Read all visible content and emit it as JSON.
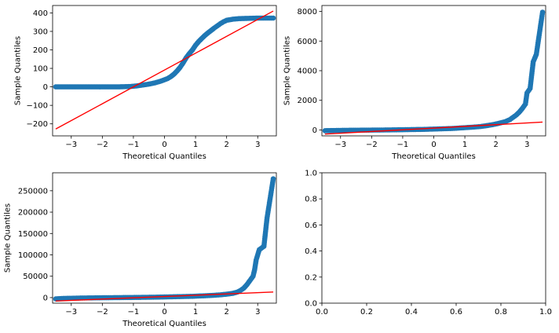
{
  "colors": {
    "points": "#1f77b4",
    "reference_line": "#ff0000",
    "frame": "#000000"
  },
  "chart_data": [
    {
      "type": "scatter",
      "title": "",
      "xlabel": "Theoretical Quantiles",
      "ylabel": "Sample Quantiles",
      "xlim": [
        -3.6,
        3.6
      ],
      "ylim": [
        -265,
        440
      ],
      "xticks": [
        -3,
        -2,
        -1,
        0,
        1,
        2,
        3
      ],
      "yticks": [
        -200,
        -100,
        0,
        100,
        200,
        300,
        400
      ],
      "reference_line": [
        [
          -3.5,
          -228
        ],
        [
          3.5,
          410
        ]
      ],
      "series": [
        {
          "x": [
            -3.5,
            -3.3,
            -3.1,
            -2.9,
            -2.7,
            -2.5,
            -2.3,
            -2.1,
            -1.9,
            -1.7,
            -1.5,
            -1.3,
            -1.1,
            -0.9,
            -0.7,
            -0.5,
            -0.3,
            -0.1,
            0.1,
            0.2,
            0.3,
            0.4,
            0.5,
            0.6,
            0.7,
            0.8,
            0.9,
            1.0,
            1.1,
            1.2,
            1.3,
            1.4,
            1.5,
            1.6,
            1.7,
            1.8,
            1.9,
            2.0,
            2.2,
            2.4,
            2.6,
            2.8,
            3.0,
            3.2,
            3.5
          ],
          "y": [
            0,
            0,
            0,
            0,
            0,
            0,
            0,
            0,
            0,
            0,
            0,
            1,
            2,
            5,
            10,
            15,
            22,
            32,
            45,
            55,
            68,
            85,
            105,
            130,
            158,
            180,
            200,
            225,
            245,
            262,
            278,
            292,
            305,
            318,
            330,
            342,
            352,
            360,
            366,
            369,
            370,
            371,
            372,
            372,
            372
          ]
        }
      ]
    },
    {
      "type": "scatter",
      "title": "",
      "xlabel": "Theoretical Quantiles",
      "ylabel": "Sample Quantiles",
      "xlim": [
        -3.6,
        3.6
      ],
      "ylim": [
        -400,
        8400
      ],
      "xticks": [
        -3,
        -2,
        -1,
        0,
        1,
        2,
        3
      ],
      "yticks": [
        0,
        2000,
        4000,
        6000,
        8000
      ],
      "reference_line": [
        [
          -3.5,
          -280
        ],
        [
          3.5,
          530
        ]
      ],
      "series": [
        {
          "x": [
            -3.5,
            -3.3,
            -3.0,
            -2.7,
            -2.4,
            -2.1,
            -1.8,
            -1.5,
            -1.2,
            -0.9,
            -0.6,
            -0.3,
            0.0,
            0.3,
            0.6,
            0.9,
            1.2,
            1.5,
            1.7,
            1.9,
            2.1,
            2.3,
            2.45,
            2.55,
            2.65,
            2.75,
            2.85,
            2.95,
            3.0,
            3.1,
            3.2,
            3.3,
            3.5
          ],
          "y": [
            -50,
            -40,
            -30,
            -20,
            -15,
            -10,
            -5,
            0,
            10,
            20,
            30,
            40,
            60,
            80,
            100,
            140,
            180,
            230,
            290,
            360,
            450,
            560,
            700,
            850,
            1000,
            1200,
            1450,
            1750,
            2500,
            2800,
            4600,
            5100,
            7950
          ]
        }
      ]
    },
    {
      "type": "scatter",
      "title": "",
      "xlabel": "Theoretical Quantiles",
      "ylabel": "Sample Quantiles",
      "xlim": [
        -3.6,
        3.6
      ],
      "ylim": [
        -13000,
        292000
      ],
      "xticks": [
        -3,
        -2,
        -1,
        0,
        1,
        2,
        3
      ],
      "yticks": [
        0,
        50000,
        100000,
        150000,
        200000,
        250000
      ],
      "reference_line": [
        [
          -3.5,
          -8000
        ],
        [
          3.5,
          13000
        ]
      ],
      "series": [
        {
          "x": [
            -3.5,
            -3.3,
            -3.0,
            -2.7,
            -2.4,
            -2.1,
            -1.8,
            -1.5,
            -1.2,
            -0.9,
            -0.6,
            -0.3,
            0.0,
            0.3,
            0.6,
            0.9,
            1.2,
            1.5,
            1.8,
            2.0,
            2.2,
            2.35,
            2.45,
            2.55,
            2.65,
            2.75,
            2.85,
            2.9,
            2.95,
            3.05,
            3.2,
            3.3,
            3.5
          ],
          "y": [
            -3000,
            -2000,
            -1500,
            -1000,
            -700,
            -400,
            -200,
            0,
            200,
            400,
            700,
            1000,
            1500,
            2000,
            2500,
            3000,
            4000,
            5000,
            6500,
            8000,
            10000,
            13000,
            17000,
            22000,
            30000,
            40000,
            50000,
            65000,
            88000,
            112000,
            120000,
            186000,
            278000
          ]
        }
      ]
    },
    {
      "type": "scatter",
      "title": "",
      "xlabel": "",
      "ylabel": "",
      "xlim": [
        0,
        1
      ],
      "ylim": [
        0,
        1
      ],
      "xticks": [
        "0.0",
        "0.2",
        "0.4",
        "0.6",
        "0.8",
        "1.0"
      ],
      "yticks": [
        "0.0",
        "0.2",
        "0.4",
        "0.6",
        "0.8",
        "1.0"
      ],
      "series": []
    }
  ]
}
